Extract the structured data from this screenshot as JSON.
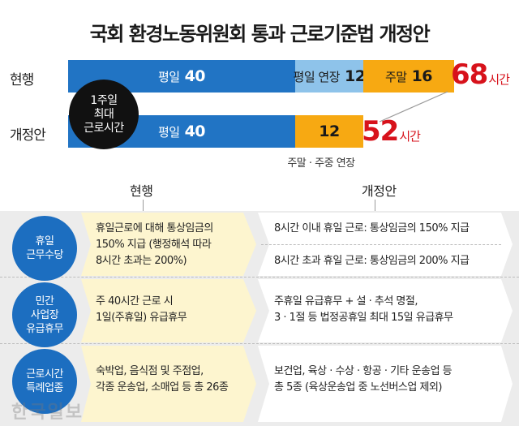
{
  "title": "국회 환경노동위원회 통과 근로기준법 개정안",
  "chart_data": {
    "type": "bar",
    "orientation": "horizontal",
    "stacked": true,
    "unit": "시간",
    "max_hours": 68,
    "weekly_max_label": "1주일\n최대\n근로시간",
    "rows": [
      {
        "label": "현행",
        "segments": [
          {
            "name": "평일",
            "value": 40,
            "color": "#2174c4"
          },
          {
            "name": "평일 연장",
            "value": 12,
            "color": "#8ec3ea"
          },
          {
            "name": "주말",
            "value": 16,
            "color": "#f7a912"
          }
        ],
        "total": 68
      },
      {
        "label": "개정안",
        "segments": [
          {
            "name": "평일",
            "value": 40,
            "color": "#2174c4"
          },
          {
            "name": "",
            "value": 12,
            "color": "#f7a912"
          }
        ],
        "total": 52
      }
    ],
    "note": "주말 · 주중 연장"
  },
  "table": {
    "col_old": "현행",
    "col_new": "개정안",
    "rows": [
      {
        "category": "휴일\n근무수당",
        "old": "휴일근로에 대해 통상임금의\n150% 지급 (행정해석 따라\n8시간 초과는 200%)",
        "new_lines": [
          "8시간 이내 휴일 근로: 통상임금의 150% 지급",
          "8시간 초과 휴일 근로: 통상임금의 200% 지급"
        ]
      },
      {
        "category": "민간\n사업장\n유급휴무",
        "old": "주 40시간 근로 시\n1일(주휴일) 유급휴무",
        "new": "주휴일 유급휴무 + 설 · 추석 명절,\n3 · 1절 등 법정공휴일 최대 15일 유급휴무"
      },
      {
        "category": "근로시간\n특례업종",
        "old": "숙박업, 음식점 및 주점업,\n각종 운송업, 소매업 등 총 26종",
        "new": "보건업, 육상 · 수상 · 항공 · 기타 운송업 등\n총 5종 (육상운송업 중 노선버스업 제외)"
      }
    ]
  },
  "colors": {
    "weekday": "#2174c4",
    "weekday_ext": "#8ec3ea",
    "weekend": "#f7a912",
    "total": "#d7121b",
    "category_circle": "#1c6ec0",
    "old_arrow": "#fdf5cf",
    "new_arrow": "#ffffff",
    "table_bg": "#ececec"
  },
  "watermark": "한국일보"
}
